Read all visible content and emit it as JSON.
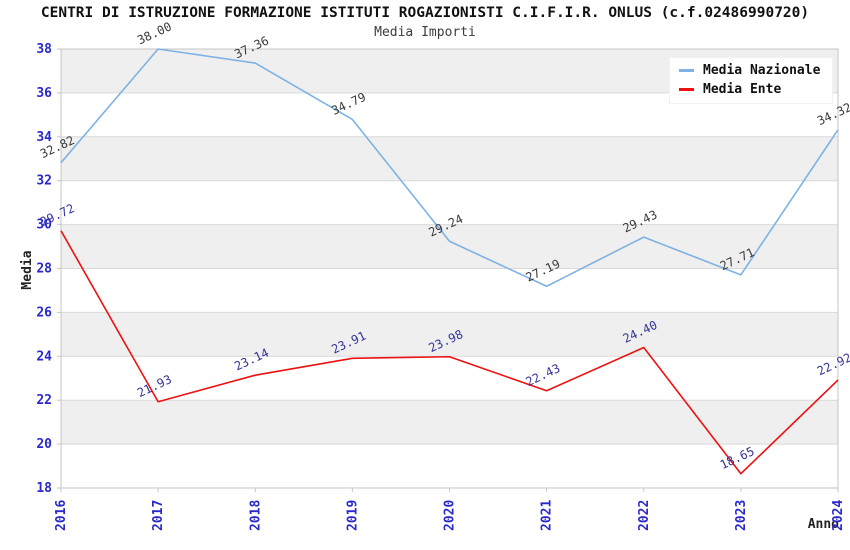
{
  "header": {
    "title": "CENTRI DI ISTRUZIONE FORMAZIONE ISTITUTI ROGAZIONISTI C.I.F.I.R. ONLUS (c.f.02486990720)",
    "subtitle": "Media Importi"
  },
  "chart_data": {
    "type": "line",
    "title": "CENTRI DI ISTRUZIONE FORMAZIONE ISTITUTI ROGAZIONISTI C.I.F.I.R. ONLUS (c.f.02486990720)",
    "subtitle": "Media Importi",
    "xlabel": "Anno",
    "ylabel": "Media",
    "ylim": [
      18,
      38
    ],
    "ytick_step": 2,
    "grid": "horizontal-bands",
    "legend_position": "top-right",
    "categories": [
      "2016",
      "2017",
      "2018",
      "2019",
      "2020",
      "2021",
      "2022",
      "2023",
      "2024"
    ],
    "series": [
      {
        "name": "Media Nazionale",
        "color": "#7EB2E4",
        "label_color": "#3A3A3A",
        "values": [
          32.82,
          38.0,
          37.36,
          34.79,
          29.24,
          27.19,
          29.43,
          27.71,
          34.32
        ]
      },
      {
        "name": "Media Ente",
        "color": "#EE1111",
        "label_color": "#333399",
        "values": [
          29.72,
          21.93,
          23.14,
          23.91,
          23.98,
          22.43,
          24.4,
          18.65,
          22.92
        ]
      }
    ],
    "colors": {
      "band_gray": "#EFEFEF",
      "gridline": "#D9D9D9",
      "plot_border": "#C6C6C6",
      "tick_label": "#2A2ACC",
      "axis_title": "#222222"
    }
  }
}
